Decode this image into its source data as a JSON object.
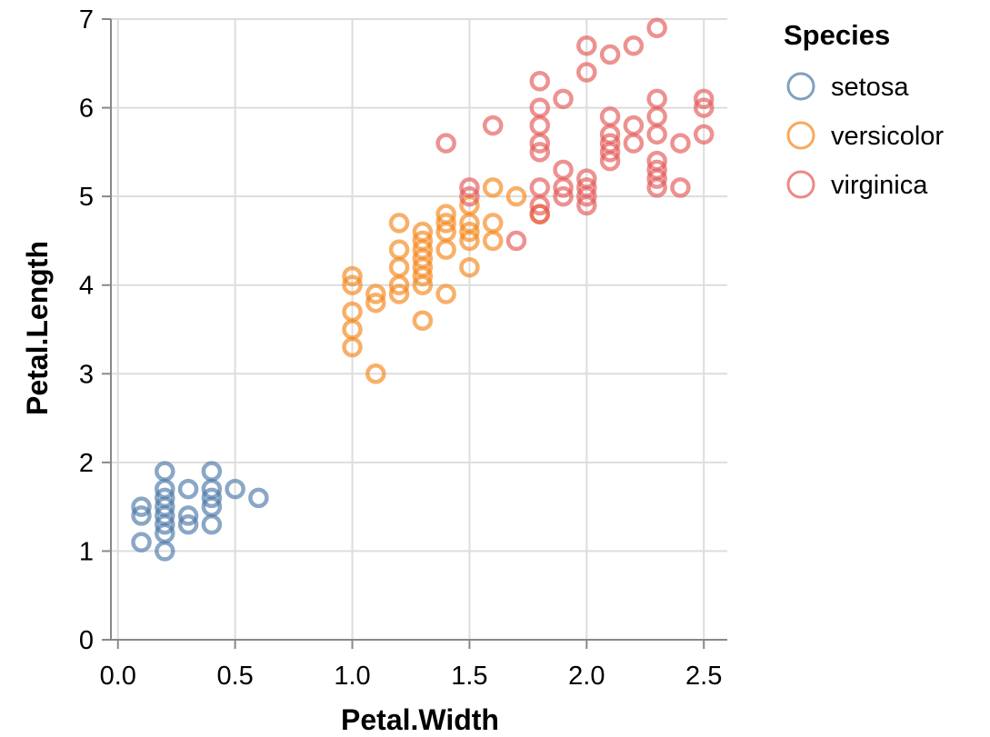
{
  "chart_data": {
    "type": "scatter",
    "xlabel": "Petal.Width",
    "ylabel": "Petal.Length",
    "xlim": [
      -0.03,
      2.6
    ],
    "ylim": [
      0,
      7
    ],
    "x_ticks": [
      0.0,
      0.5,
      1.0,
      1.5,
      2.0,
      2.5
    ],
    "x_tick_labels": [
      "0.0",
      "0.5",
      "1.0",
      "1.5",
      "2.0",
      "2.5"
    ],
    "y_ticks": [
      0,
      1,
      2,
      3,
      4,
      5,
      6,
      7
    ],
    "y_tick_labels": [
      "0",
      "1",
      "2",
      "3",
      "4",
      "5",
      "6",
      "7"
    ],
    "grid": true,
    "legend": {
      "title": "Species",
      "placement": "right"
    },
    "marker": "hollow-circle",
    "series": [
      {
        "name": "setosa",
        "color": "#4c78a8",
        "points": [
          [
            0.1,
            1.1
          ],
          [
            0.1,
            1.4
          ],
          [
            0.1,
            1.5
          ],
          [
            0.2,
            1.0
          ],
          [
            0.2,
            1.2
          ],
          [
            0.2,
            1.3
          ],
          [
            0.2,
            1.4
          ],
          [
            0.2,
            1.5
          ],
          [
            0.2,
            1.6
          ],
          [
            0.2,
            1.7
          ],
          [
            0.2,
            1.9
          ],
          [
            0.3,
            1.3
          ],
          [
            0.3,
            1.4
          ],
          [
            0.3,
            1.7
          ],
          [
            0.4,
            1.3
          ],
          [
            0.4,
            1.5
          ],
          [
            0.4,
            1.6
          ],
          [
            0.4,
            1.7
          ],
          [
            0.4,
            1.9
          ],
          [
            0.5,
            1.7
          ],
          [
            0.6,
            1.6
          ]
        ]
      },
      {
        "name": "versicolor",
        "color": "#f58518",
        "points": [
          [
            1.0,
            3.3
          ],
          [
            1.0,
            3.5
          ],
          [
            1.0,
            3.7
          ],
          [
            1.0,
            4.0
          ],
          [
            1.0,
            4.1
          ],
          [
            1.1,
            3.0
          ],
          [
            1.1,
            3.8
          ],
          [
            1.1,
            3.9
          ],
          [
            1.2,
            3.9
          ],
          [
            1.2,
            4.0
          ],
          [
            1.2,
            4.2
          ],
          [
            1.2,
            4.4
          ],
          [
            1.2,
            4.7
          ],
          [
            1.3,
            3.6
          ],
          [
            1.3,
            4.0
          ],
          [
            1.3,
            4.1
          ],
          [
            1.3,
            4.2
          ],
          [
            1.3,
            4.3
          ],
          [
            1.3,
            4.4
          ],
          [
            1.3,
            4.5
          ],
          [
            1.3,
            4.6
          ],
          [
            1.4,
            3.9
          ],
          [
            1.4,
            4.4
          ],
          [
            1.4,
            4.6
          ],
          [
            1.4,
            4.7
          ],
          [
            1.4,
            4.8
          ],
          [
            1.5,
            4.2
          ],
          [
            1.5,
            4.5
          ],
          [
            1.5,
            4.6
          ],
          [
            1.5,
            4.7
          ],
          [
            1.5,
            4.9
          ],
          [
            1.6,
            4.5
          ],
          [
            1.6,
            4.7
          ],
          [
            1.6,
            5.1
          ],
          [
            1.7,
            5.0
          ],
          [
            1.8,
            4.8
          ]
        ]
      },
      {
        "name": "virginica",
        "color": "#e45756",
        "points": [
          [
            1.4,
            5.6
          ],
          [
            1.5,
            5.0
          ],
          [
            1.5,
            5.1
          ],
          [
            1.6,
            5.8
          ],
          [
            1.7,
            4.5
          ],
          [
            1.8,
            4.8
          ],
          [
            1.8,
            4.9
          ],
          [
            1.8,
            5.1
          ],
          [
            1.8,
            5.5
          ],
          [
            1.8,
            5.6
          ],
          [
            1.8,
            5.8
          ],
          [
            1.8,
            6.0
          ],
          [
            1.8,
            6.3
          ],
          [
            1.9,
            5.0
          ],
          [
            1.9,
            5.1
          ],
          [
            1.9,
            5.3
          ],
          [
            1.9,
            6.1
          ],
          [
            2.0,
            4.9
          ],
          [
            2.0,
            5.0
          ],
          [
            2.0,
            5.1
          ],
          [
            2.0,
            5.2
          ],
          [
            2.0,
            6.4
          ],
          [
            2.0,
            6.7
          ],
          [
            2.1,
            5.4
          ],
          [
            2.1,
            5.5
          ],
          [
            2.1,
            5.6
          ],
          [
            2.1,
            5.7
          ],
          [
            2.1,
            5.9
          ],
          [
            2.1,
            6.6
          ],
          [
            2.2,
            5.6
          ],
          [
            2.2,
            5.8
          ],
          [
            2.2,
            6.7
          ],
          [
            2.3,
            5.1
          ],
          [
            2.3,
            5.2
          ],
          [
            2.3,
            5.3
          ],
          [
            2.3,
            5.4
          ],
          [
            2.3,
            5.7
          ],
          [
            2.3,
            5.9
          ],
          [
            2.3,
            6.1
          ],
          [
            2.3,
            6.9
          ],
          [
            2.4,
            5.1
          ],
          [
            2.4,
            5.6
          ],
          [
            2.5,
            5.7
          ],
          [
            2.5,
            6.0
          ],
          [
            2.5,
            6.1
          ]
        ]
      }
    ]
  }
}
